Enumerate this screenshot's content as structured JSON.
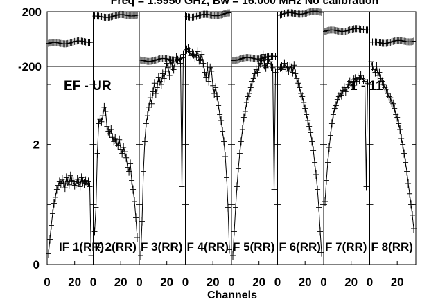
{
  "chart_data": {
    "type": "line",
    "title": "Freq = 1.5950 GHz, Bw = 16.000 MHz   No calibration",
    "xlabel": "Channels",
    "baseline": "EF - UR",
    "scan_label": "1 - 11",
    "phase_ylim": [
      -200,
      200
    ],
    "phase_ticks": [
      "200",
      "-200"
    ],
    "amp_ylim": [
      0,
      3.3
    ],
    "amp_ticks": [
      "2",
      "0"
    ],
    "x_ticks": [
      0,
      20
    ],
    "x_tick_labels": [
      "0",
      "20"
    ],
    "channels": [
      1,
      32
    ],
    "panels": [
      {
        "label": "IF 1(RR)",
        "phase": -25,
        "amp": [
          0.18,
          0.42,
          0.65,
          0.85,
          1.02,
          1.12,
          1.25,
          1.32,
          1.38,
          1.35,
          1.42,
          1.36,
          1.28,
          1.45,
          1.38,
          1.33,
          1.48,
          1.4,
          1.38,
          1.32,
          1.35,
          1.42,
          1.37,
          1.3,
          1.45,
          1.38,
          1.35,
          1.4,
          1.33,
          1.38,
          1.3,
          0.15
        ]
      },
      {
        "label": "F 2(RR)",
        "phase": 170,
        "amp": [
          0.55,
          0.95,
          1.85,
          2.35,
          2.42,
          2.38,
          2.48,
          2.62,
          2.55,
          2.3,
          2.22,
          2.18,
          2.25,
          2.12,
          2.05,
          2.1,
          2.02,
          1.98,
          2.08,
          1.92,
          1.85,
          1.95,
          1.88,
          1.78,
          1.62,
          1.55,
          1.68,
          1.4,
          1.25,
          1.05,
          0.78,
          0.45
        ]
      },
      {
        "label": "F 3(RR)",
        "phase": -150,
        "amp": [
          0.15,
          0.72,
          1.55,
          2.05,
          2.35,
          2.48,
          2.62,
          2.78,
          2.68,
          2.88,
          3.02,
          2.85,
          2.95,
          3.12,
          3.05,
          3.0,
          3.18,
          3.1,
          3.22,
          3.35,
          3.28,
          3.15,
          3.4,
          3.3,
          3.25,
          3.38,
          3.45,
          3.4,
          3.42,
          3.35,
          1.3,
          3.5
        ]
      },
      {
        "label": "F 4(RR)",
        "phase": 175,
        "amp": [
          3.58,
          3.6,
          3.55,
          3.48,
          3.52,
          3.5,
          3.45,
          3.48,
          3.55,
          3.4,
          3.42,
          3.5,
          3.35,
          3.2,
          3.12,
          3.3,
          3.05,
          3.28,
          3.22,
          2.98,
          2.85,
          2.95,
          2.8,
          2.65,
          2.5,
          2.4,
          2.22,
          2.05,
          1.8,
          1.45,
          0.95,
          0.25
        ]
      },
      {
        "label": "F 5(RR)",
        "phase": -140,
        "amp": [
          0.15,
          0.55,
          0.95,
          1.3,
          1.6,
          1.85,
          2.05,
          2.25,
          2.45,
          2.55,
          2.7,
          2.8,
          2.85,
          2.95,
          3.05,
          3.1,
          3.18,
          3.25,
          3.2,
          3.3,
          3.35,
          3.4,
          3.5,
          3.32,
          3.28,
          3.35,
          3.42,
          3.38,
          3.3,
          3.28,
          1.25,
          3.2
        ]
      },
      {
        "label": "F 6(RR)",
        "phase": 190,
        "amp": [
          3.25,
          3.28,
          3.3,
          3.25,
          3.35,
          3.28,
          3.3,
          3.22,
          3.3,
          3.28,
          3.2,
          3.32,
          3.18,
          3.1,
          3.02,
          2.95,
          2.85,
          2.8,
          2.7,
          2.6,
          2.5,
          2.4,
          2.3,
          2.2,
          2.05,
          1.9,
          1.7,
          1.5,
          1.25,
          0.95,
          0.55,
          0.2
        ]
      },
      {
        "label": "F 7(RR)",
        "phase": 65,
        "amp": [
          1.05,
          1.4,
          1.7,
          1.95,
          2.15,
          2.35,
          2.5,
          2.6,
          2.65,
          2.75,
          2.8,
          2.85,
          2.82,
          2.9,
          2.95,
          2.88,
          2.95,
          3.0,
          3.05,
          3.0,
          2.98,
          3.08,
          3.1,
          3.05,
          3.12,
          3.08,
          3.15,
          3.1,
          3.08,
          3.05,
          1.3,
          3.02
        ]
      },
      {
        "label": "F 8(RR)",
        "phase": -20,
        "amp": [
          3.38,
          3.3,
          3.25,
          3.2,
          3.3,
          3.15,
          3.2,
          3.1,
          3.05,
          3.0,
          2.95,
          2.92,
          2.85,
          2.8,
          2.78,
          2.7,
          2.68,
          2.6,
          2.5,
          2.45,
          2.35,
          2.25,
          2.1,
          2.0,
          1.85,
          1.7,
          1.55,
          1.35,
          1.18,
          1.0,
          0.82,
          0.6
        ]
      }
    ]
  }
}
